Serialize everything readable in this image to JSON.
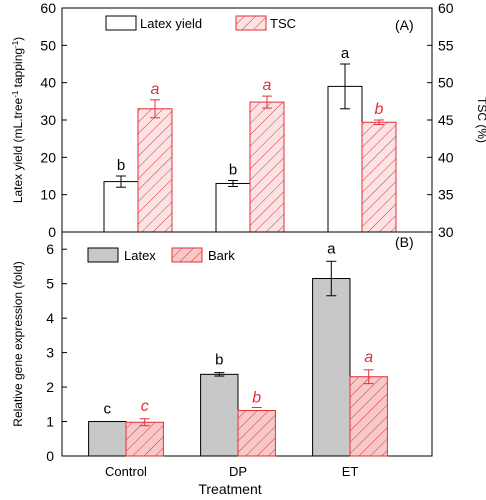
{
  "chart_data": [
    {
      "panel": "(A)",
      "type": "bar",
      "categories": [
        "Control",
        "DP",
        "ET"
      ],
      "ylabel": "Latex yield (mL·tree⁻¹ tapping⁻¹)",
      "ylabel_parts": [
        "Latex yield (mL.tree",
        "-1",
        " tapping",
        "-1",
        ")"
      ],
      "y2label": "TSC (%)",
      "ylim": [
        0,
        60
      ],
      "yticks": [
        0,
        10,
        20,
        30,
        40,
        50,
        60
      ],
      "y2lim": [
        30,
        60
      ],
      "y2ticks": [
        30,
        35,
        40,
        45,
        50,
        55,
        60
      ],
      "legend_position": "top",
      "series": [
        {
          "name": "Latex yield",
          "axis": "left",
          "style": "open",
          "values": [
            13.5,
            13.0,
            39.0
          ],
          "errors": [
            1.5,
            0.8,
            6.0
          ],
          "letters": [
            "b",
            "b",
            "a"
          ]
        },
        {
          "name": "TSC",
          "axis": "right",
          "style": "hatched",
          "values": [
            46.5,
            47.4,
            44.7
          ],
          "errors": [
            1.2,
            0.8,
            0.3
          ],
          "letters": [
            "a",
            "a",
            "b"
          ]
        }
      ]
    },
    {
      "panel": "(B)",
      "type": "bar",
      "categories": [
        "Control",
        "DP",
        "ET"
      ],
      "xlabel": "Treatment",
      "ylabel": "Relative gene expression (fold)",
      "ylim": [
        0,
        6.5
      ],
      "yticks": [
        0,
        1,
        2,
        3,
        4,
        5,
        6
      ],
      "legend_position": "top-left",
      "series": [
        {
          "name": "Latex",
          "style": "gray",
          "values": [
            1.0,
            2.37,
            5.15
          ],
          "errors": [
            0.0,
            0.05,
            0.5
          ],
          "letters": [
            "c",
            "b",
            "a"
          ]
        },
        {
          "name": "Bark",
          "style": "hatched",
          "values": [
            0.98,
            1.32,
            2.3
          ],
          "errors": [
            0.1,
            0.0,
            0.2
          ],
          "letters": [
            "c",
            "b",
            "a"
          ]
        }
      ]
    }
  ],
  "colors": {
    "red": "#e0303a",
    "gray_fill": "#c8c8c8",
    "hatch_fill": "#f6c8c8",
    "axis": "#000000"
  }
}
